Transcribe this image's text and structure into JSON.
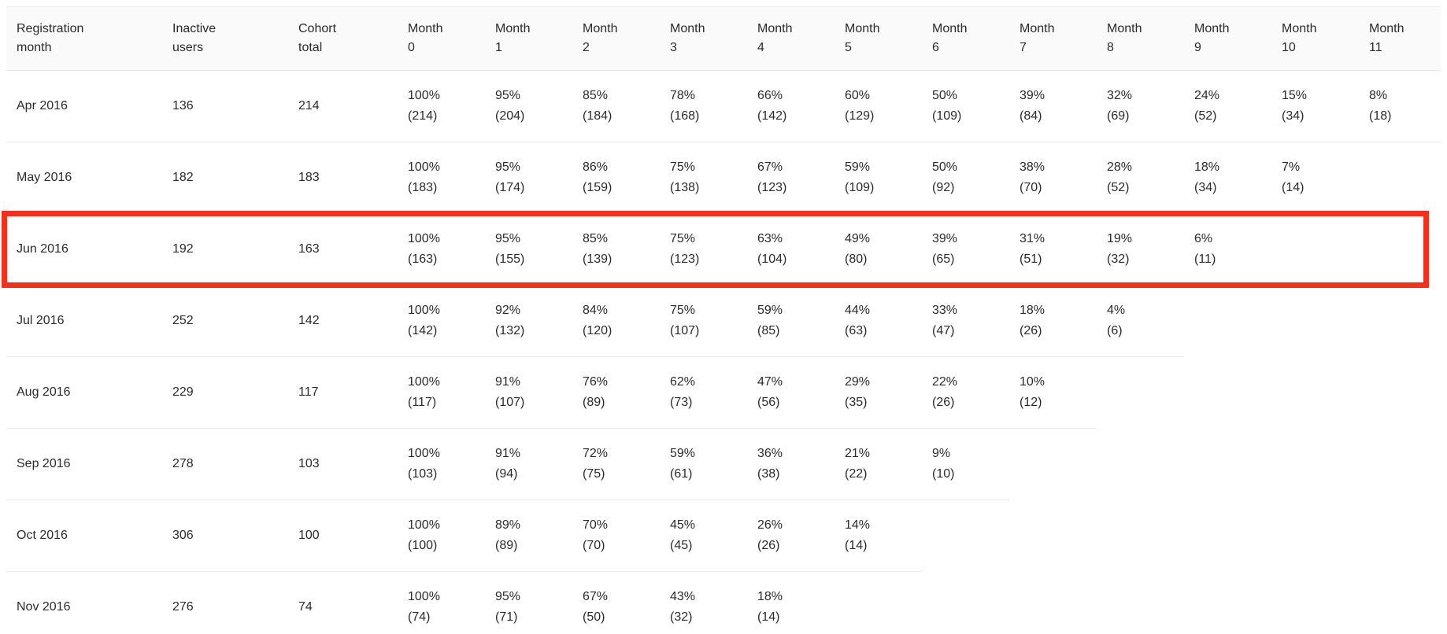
{
  "table": {
    "headers": [
      {
        "lines": [
          "Registration",
          "month"
        ]
      },
      {
        "lines": [
          "Inactive",
          "users"
        ]
      },
      {
        "lines": [
          "Cohort",
          "total"
        ]
      },
      {
        "lines": [
          "Month",
          "0"
        ]
      },
      {
        "lines": [
          "Month",
          "1"
        ]
      },
      {
        "lines": [
          "Month",
          "2"
        ]
      },
      {
        "lines": [
          "Month",
          "3"
        ]
      },
      {
        "lines": [
          "Month",
          "4"
        ]
      },
      {
        "lines": [
          "Month",
          "5"
        ]
      },
      {
        "lines": [
          "Month",
          "6"
        ]
      },
      {
        "lines": [
          "Month",
          "7"
        ]
      },
      {
        "lines": [
          "Month",
          "8"
        ]
      },
      {
        "lines": [
          "Month",
          "9"
        ]
      },
      {
        "lines": [
          "Month",
          "10"
        ]
      },
      {
        "lines": [
          "Month",
          "11"
        ]
      }
    ],
    "rows": [
      {
        "registration_month": "Apr 2016",
        "inactive_users": "136",
        "cohort_total": "214",
        "months": [
          [
            "100%",
            "(214)"
          ],
          [
            "95%",
            "(204)"
          ],
          [
            "85%",
            "(184)"
          ],
          [
            "78%",
            "(168)"
          ],
          [
            "66%",
            "(142)"
          ],
          [
            "60%",
            "(129)"
          ],
          [
            "50%",
            "(109)"
          ],
          [
            "39%",
            "(84)"
          ],
          [
            "32%",
            "(69)"
          ],
          [
            "24%",
            "(52)"
          ],
          [
            "15%",
            "(34)"
          ],
          [
            "8%",
            "(18)"
          ]
        ]
      },
      {
        "registration_month": "May 2016",
        "inactive_users": "182",
        "cohort_total": "183",
        "months": [
          [
            "100%",
            "(183)"
          ],
          [
            "95%",
            "(174)"
          ],
          [
            "86%",
            "(159)"
          ],
          [
            "75%",
            "(138)"
          ],
          [
            "67%",
            "(123)"
          ],
          [
            "59%",
            "(109)"
          ],
          [
            "50%",
            "(92)"
          ],
          [
            "38%",
            "(70)"
          ],
          [
            "28%",
            "(52)"
          ],
          [
            "18%",
            "(34)"
          ],
          [
            "7%",
            "(14)"
          ]
        ]
      },
      {
        "registration_month": "Jun 2016",
        "inactive_users": "192",
        "cohort_total": "163",
        "months": [
          [
            "100%",
            "(163)"
          ],
          [
            "95%",
            "(155)"
          ],
          [
            "85%",
            "(139)"
          ],
          [
            "75%",
            "(123)"
          ],
          [
            "63%",
            "(104)"
          ],
          [
            "49%",
            "(80)"
          ],
          [
            "39%",
            "(65)"
          ],
          [
            "31%",
            "(51)"
          ],
          [
            "19%",
            "(32)"
          ],
          [
            "6%",
            "(11)"
          ]
        ]
      },
      {
        "registration_month": "Jul 2016",
        "inactive_users": "252",
        "cohort_total": "142",
        "months": [
          [
            "100%",
            "(142)"
          ],
          [
            "92%",
            "(132)"
          ],
          [
            "84%",
            "(120)"
          ],
          [
            "75%",
            "(107)"
          ],
          [
            "59%",
            "(85)"
          ],
          [
            "44%",
            "(63)"
          ],
          [
            "33%",
            "(47)"
          ],
          [
            "18%",
            "(26)"
          ],
          [
            "4%",
            "(6)"
          ]
        ]
      },
      {
        "registration_month": "Aug 2016",
        "inactive_users": "229",
        "cohort_total": "117",
        "months": [
          [
            "100%",
            "(117)"
          ],
          [
            "91%",
            "(107)"
          ],
          [
            "76%",
            "(89)"
          ],
          [
            "62%",
            "(73)"
          ],
          [
            "47%",
            "(56)"
          ],
          [
            "29%",
            "(35)"
          ],
          [
            "22%",
            "(26)"
          ],
          [
            "10%",
            "(12)"
          ]
        ]
      },
      {
        "registration_month": "Sep 2016",
        "inactive_users": "278",
        "cohort_total": "103",
        "months": [
          [
            "100%",
            "(103)"
          ],
          [
            "91%",
            "(94)"
          ],
          [
            "72%",
            "(75)"
          ],
          [
            "59%",
            "(61)"
          ],
          [
            "36%",
            "(38)"
          ],
          [
            "21%",
            "(22)"
          ],
          [
            "9%",
            "(10)"
          ]
        ]
      },
      {
        "registration_month": "Oct 2016",
        "inactive_users": "306",
        "cohort_total": "100",
        "months": [
          [
            "100%",
            "(100)"
          ],
          [
            "89%",
            "(89)"
          ],
          [
            "70%",
            "(70)"
          ],
          [
            "45%",
            "(45)"
          ],
          [
            "26%",
            "(26)"
          ],
          [
            "14%",
            "(14)"
          ]
        ]
      },
      {
        "registration_month": "Nov 2016",
        "inactive_users": "276",
        "cohort_total": "74",
        "months": [
          [
            "100%",
            "(74)"
          ],
          [
            "95%",
            "(71)"
          ],
          [
            "67%",
            "(50)"
          ],
          [
            "43%",
            "(32)"
          ],
          [
            "18%",
            "(14)"
          ]
        ]
      }
    ]
  },
  "annotation": {
    "highlighted_row": "Jun 2016",
    "box_color": "#f82d1a"
  },
  "colors": {
    "header_background": "#fafafa",
    "row_border": "#e9e9e9",
    "text": "#2b2b2b",
    "highlight_red": "#f82d1a"
  },
  "chart_data": {
    "type": "table",
    "title": "Cohort retention table",
    "columns": [
      "Registration month",
      "Inactive users",
      "Cohort total",
      "Month 0",
      "Month 1",
      "Month 2",
      "Month 3",
      "Month 4",
      "Month 5",
      "Month 6",
      "Month 7",
      "Month 8",
      "Month 9",
      "Month 10",
      "Month 11"
    ],
    "series": [
      {
        "name": "Apr 2016",
        "inactive_users": 136,
        "cohort_total": 214,
        "retention_pct": [
          100,
          95,
          85,
          78,
          66,
          60,
          50,
          39,
          32,
          24,
          15,
          8
        ],
        "retention_counts": [
          214,
          204,
          184,
          168,
          142,
          129,
          109,
          84,
          69,
          52,
          34,
          18
        ]
      },
      {
        "name": "May 2016",
        "inactive_users": 182,
        "cohort_total": 183,
        "retention_pct": [
          100,
          95,
          86,
          75,
          67,
          59,
          50,
          38,
          28,
          18,
          7
        ],
        "retention_counts": [
          183,
          174,
          159,
          138,
          123,
          109,
          92,
          70,
          52,
          34,
          14
        ]
      },
      {
        "name": "Jun 2016",
        "inactive_users": 192,
        "cohort_total": 163,
        "retention_pct": [
          100,
          95,
          85,
          75,
          63,
          49,
          39,
          31,
          19,
          6
        ],
        "retention_counts": [
          163,
          155,
          139,
          123,
          104,
          80,
          65,
          51,
          32,
          11
        ]
      },
      {
        "name": "Jul 2016",
        "inactive_users": 252,
        "cohort_total": 142,
        "retention_pct": [
          100,
          92,
          84,
          75,
          59,
          44,
          33,
          18,
          4
        ],
        "retention_counts": [
          142,
          132,
          120,
          107,
          85,
          63,
          47,
          26,
          6
        ]
      },
      {
        "name": "Aug 2016",
        "inactive_users": 229,
        "cohort_total": 117,
        "retention_pct": [
          100,
          91,
          76,
          62,
          47,
          29,
          22,
          10
        ],
        "retention_counts": [
          117,
          107,
          89,
          73,
          56,
          35,
          26,
          12
        ]
      },
      {
        "name": "Sep 2016",
        "inactive_users": 278,
        "cohort_total": 103,
        "retention_pct": [
          100,
          91,
          72,
          59,
          36,
          21,
          9
        ],
        "retention_counts": [
          103,
          94,
          75,
          61,
          38,
          22,
          10
        ]
      },
      {
        "name": "Oct 2016",
        "inactive_users": 306,
        "cohort_total": 100,
        "retention_pct": [
          100,
          89,
          70,
          45,
          26,
          14
        ],
        "retention_counts": [
          100,
          89,
          70,
          45,
          26,
          14
        ]
      },
      {
        "name": "Nov 2016",
        "inactive_users": 276,
        "cohort_total": 74,
        "retention_pct": [
          100,
          95,
          67,
          43,
          18
        ],
        "retention_counts": [
          74,
          71,
          50,
          32,
          14
        ]
      }
    ],
    "annotation": "red rectangle highlighting Jun 2016 row",
    "legend_position": "none",
    "grid": "horizontal row separators, staircase (borders end after last filled month)"
  }
}
